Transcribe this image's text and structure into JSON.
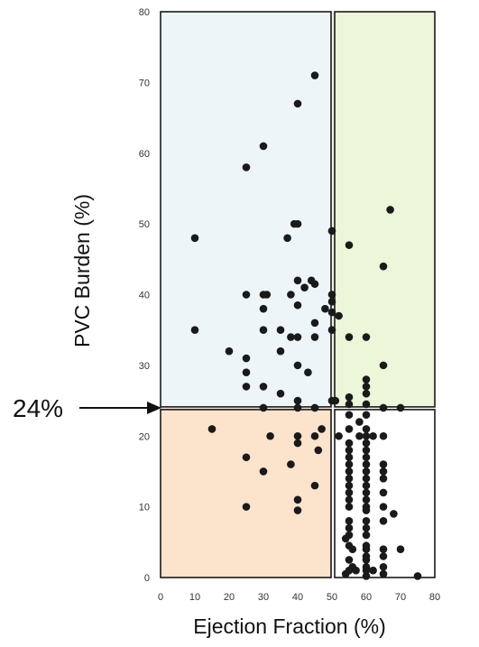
{
  "chart_data": {
    "type": "scatter",
    "xlabel": "Ejection Fraction (%)",
    "ylabel": "PVC Burden (%)",
    "xlim": [
      0,
      80
    ],
    "ylim": [
      0,
      80
    ],
    "x_ticks": [
      0,
      10,
      20,
      30,
      40,
      50,
      60,
      70,
      80
    ],
    "y_ticks": [
      0,
      10,
      20,
      30,
      40,
      50,
      60,
      70,
      80
    ],
    "grid": false,
    "threshold_label": "24%",
    "threshold_y": 24,
    "ef_cutoff": 50,
    "regions": [
      {
        "id": "low-ef-high-burden",
        "x": [
          0,
          50
        ],
        "y": [
          24,
          80
        ],
        "color": "#edf5f8"
      },
      {
        "id": "normal-ef-high-burden",
        "x": [
          50,
          80
        ],
        "y": [
          24,
          80
        ],
        "color": "#ecf6d8"
      },
      {
        "id": "low-ef-low-burden",
        "x": [
          0,
          50
        ],
        "y": [
          0,
          24
        ],
        "color": "#fbe3cc"
      },
      {
        "id": "normal-ef-low-burden",
        "x": [
          50,
          80
        ],
        "y": [
          0,
          24
        ],
        "color": "#ffffff"
      }
    ],
    "point_color": "#1a1a1a",
    "series": [
      {
        "points": [
          [
            45,
            71
          ],
          [
            40,
            67
          ],
          [
            30,
            61
          ],
          [
            25,
            58
          ],
          [
            39,
            50
          ],
          [
            40,
            50
          ],
          [
            37,
            48
          ],
          [
            10,
            48
          ],
          [
            50,
            49
          ],
          [
            40,
            42
          ],
          [
            44,
            42
          ],
          [
            45,
            41.5
          ],
          [
            42,
            41
          ],
          [
            25,
            40
          ],
          [
            30,
            40
          ],
          [
            31,
            40
          ],
          [
            38,
            40
          ],
          [
            50,
            40
          ],
          [
            50,
            39
          ],
          [
            40,
            38.5
          ],
          [
            30,
            38
          ],
          [
            48,
            38
          ],
          [
            50,
            37.5
          ],
          [
            52,
            37
          ],
          [
            45,
            36
          ],
          [
            10,
            35
          ],
          [
            30,
            35
          ],
          [
            35,
            35
          ],
          [
            50,
            35
          ],
          [
            38,
            34
          ],
          [
            40,
            34
          ],
          [
            45,
            34
          ],
          [
            20,
            32
          ],
          [
            35,
            32
          ],
          [
            25,
            31
          ],
          [
            40,
            30
          ],
          [
            25,
            29
          ],
          [
            43,
            29
          ],
          [
            25,
            27
          ],
          [
            30,
            27
          ],
          [
            35,
            26
          ],
          [
            40,
            25
          ],
          [
            50,
            25
          ],
          [
            51,
            25
          ],
          [
            30,
            24
          ],
          [
            40,
            24
          ],
          [
            45,
            24
          ],
          [
            55,
            47
          ],
          [
            67,
            52
          ],
          [
            65,
            44
          ],
          [
            55,
            34
          ],
          [
            60,
            34
          ],
          [
            65,
            30
          ],
          [
            60,
            28
          ],
          [
            60,
            27
          ],
          [
            60,
            26
          ],
          [
            55,
            25.5
          ],
          [
            55,
            24.5
          ],
          [
            60,
            24.5
          ],
          [
            65,
            24
          ],
          [
            70,
            24
          ],
          [
            15,
            21
          ],
          [
            32,
            20
          ],
          [
            40,
            20
          ],
          [
            45,
            20
          ],
          [
            47,
            21
          ],
          [
            40,
            19
          ],
          [
            46,
            18
          ],
          [
            25,
            17
          ],
          [
            38,
            16
          ],
          [
            30,
            15
          ],
          [
            45,
            13
          ],
          [
            40,
            11
          ],
          [
            25,
            10
          ],
          [
            40,
            9.5
          ],
          [
            55,
            23
          ],
          [
            58,
            22
          ],
          [
            60,
            23
          ],
          [
            55,
            21
          ],
          [
            60,
            21
          ],
          [
            52,
            20
          ],
          [
            58,
            20
          ],
          [
            60,
            20
          ],
          [
            62,
            20
          ],
          [
            65,
            20
          ],
          [
            55,
            19
          ],
          [
            60,
            19
          ],
          [
            55,
            18
          ],
          [
            60,
            18
          ],
          [
            55,
            17
          ],
          [
            60,
            17
          ],
          [
            55,
            16
          ],
          [
            60,
            16
          ],
          [
            65,
            16
          ],
          [
            55,
            15
          ],
          [
            60,
            15
          ],
          [
            65,
            15
          ],
          [
            55,
            14
          ],
          [
            60,
            14
          ],
          [
            65,
            14
          ],
          [
            55,
            13
          ],
          [
            60,
            13
          ],
          [
            55,
            12
          ],
          [
            60,
            12
          ],
          [
            65,
            12
          ],
          [
            55,
            11
          ],
          [
            60,
            11
          ],
          [
            55,
            10
          ],
          [
            60,
            10
          ],
          [
            65,
            10
          ],
          [
            60,
            9.5
          ],
          [
            68,
            9
          ],
          [
            55,
            8
          ],
          [
            60,
            8
          ],
          [
            65,
            8
          ],
          [
            55,
            7
          ],
          [
            60,
            7
          ],
          [
            55,
            6
          ],
          [
            60,
            6
          ],
          [
            54,
            5.5
          ],
          [
            55,
            4.5
          ],
          [
            60,
            4.5
          ],
          [
            56,
            4
          ],
          [
            60,
            4
          ],
          [
            65,
            4
          ],
          [
            70,
            4
          ],
          [
            60,
            3
          ],
          [
            65,
            3
          ],
          [
            55,
            2.5
          ],
          [
            60,
            2.5
          ],
          [
            56,
            1.5
          ],
          [
            60,
            1.5
          ],
          [
            65,
            1.5
          ],
          [
            55,
            1
          ],
          [
            57,
            1
          ],
          [
            60,
            1
          ],
          [
            62,
            1
          ],
          [
            54,
            0.5
          ],
          [
            65,
            0.5
          ],
          [
            60,
            0.2
          ],
          [
            75,
            0.2
          ]
        ]
      }
    ]
  }
}
